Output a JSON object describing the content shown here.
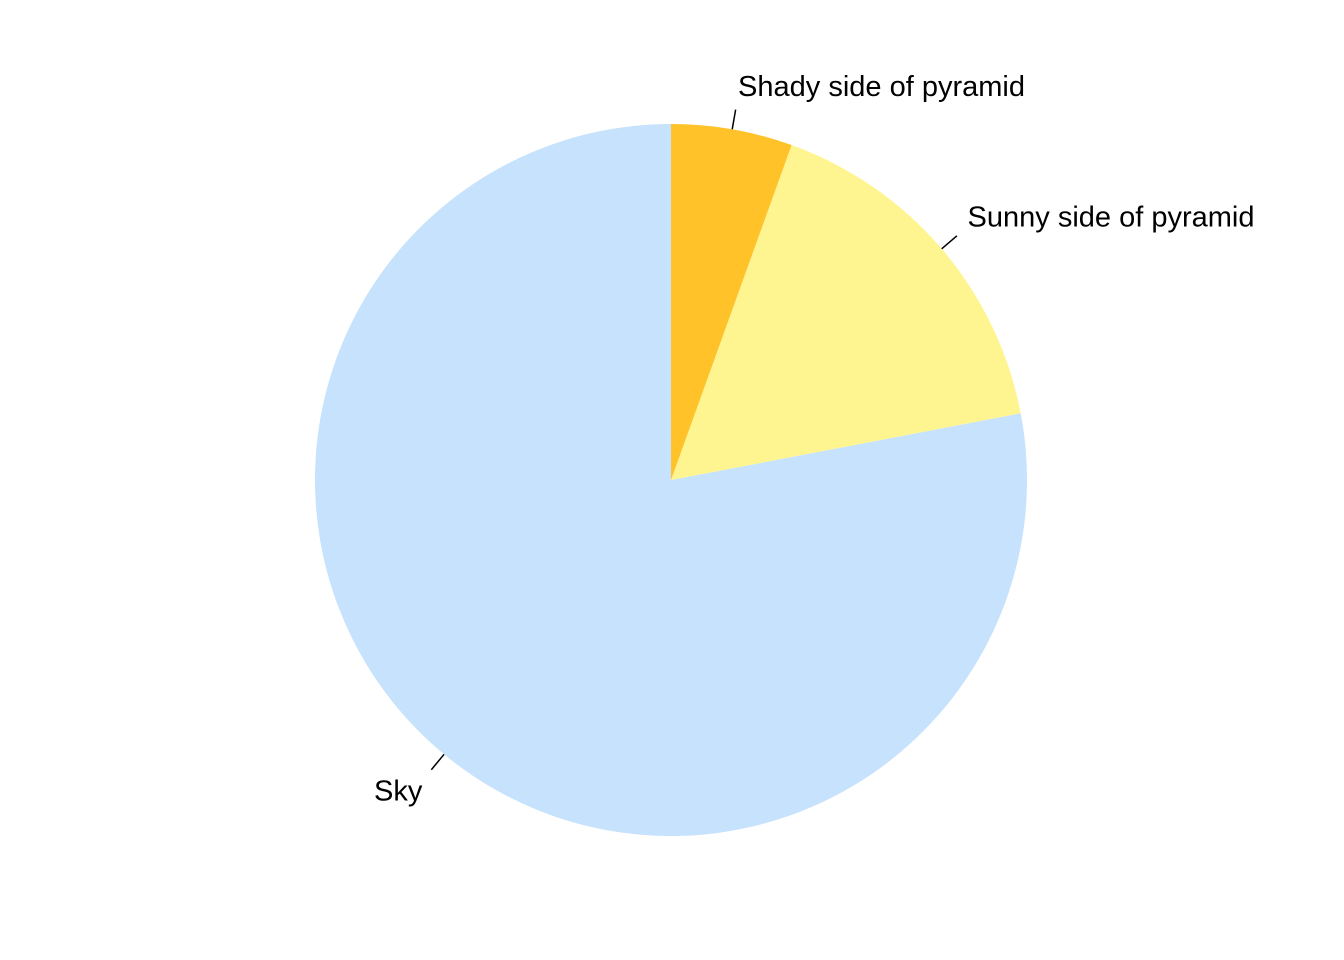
{
  "chart_data": {
    "type": "pie",
    "title": "",
    "start_angle_deg": 90,
    "direction": "counterclockwise",
    "slices": [
      {
        "label": "Sky",
        "value": 0.78,
        "color": "#C6E2FC"
      },
      {
        "label": "Sunny side of pyramid",
        "value": 0.165,
        "color": "#FEF591"
      },
      {
        "label": "Shady side of pyramid",
        "value": 0.055,
        "color": "#FFC229"
      }
    ],
    "legend": "none"
  }
}
